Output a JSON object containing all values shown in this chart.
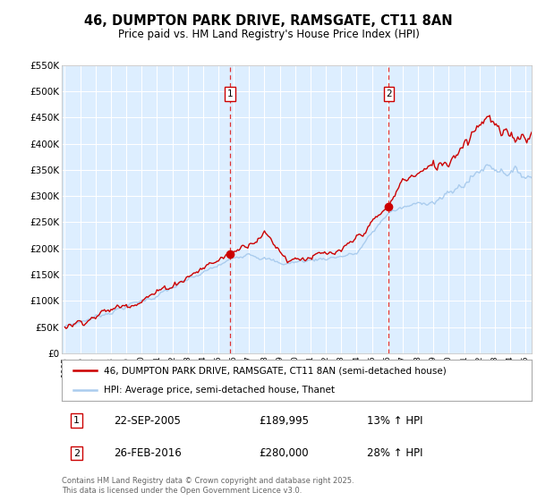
{
  "title": "46, DUMPTON PARK DRIVE, RAMSGATE, CT11 8AN",
  "subtitle": "Price paid vs. HM Land Registry's House Price Index (HPI)",
  "bg_color": "#ffffff",
  "plot_bg_color": "#ddeeff",
  "grid_color": "#ffffff",
  "line1_color": "#cc0000",
  "line2_color": "#aaccee",
  "vline_color": "#dd3333",
  "sale1_date": "22-SEP-2005",
  "sale1_price": "£189,995",
  "sale1_hpi": "13% ↑ HPI",
  "sale2_date": "26-FEB-2016",
  "sale2_price": "£280,000",
  "sale2_hpi": "28% ↑ HPI",
  "legend1": "46, DUMPTON PARK DRIVE, RAMSGATE, CT11 8AN (semi-detached house)",
  "legend2": "HPI: Average price, semi-detached house, Thanet",
  "footer": "Contains HM Land Registry data © Crown copyright and database right 2025.\nThis data is licensed under the Open Government Licence v3.0.",
  "ylim": [
    0,
    550000
  ],
  "yticks": [
    0,
    50000,
    100000,
    150000,
    200000,
    250000,
    300000,
    350000,
    400000,
    450000,
    500000,
    550000
  ],
  "ytick_labels": [
    "£0",
    "£50K",
    "£100K",
    "£150K",
    "£200K",
    "£250K",
    "£300K",
    "£350K",
    "£400K",
    "£450K",
    "£500K",
    "£550K"
  ],
  "xstart_year": 1995,
  "xend_year": 2025,
  "idx1_year": 2005.75,
  "idx2_year": 2016.1,
  "sale1_dot_price": 189995,
  "sale2_dot_price": 280000
}
